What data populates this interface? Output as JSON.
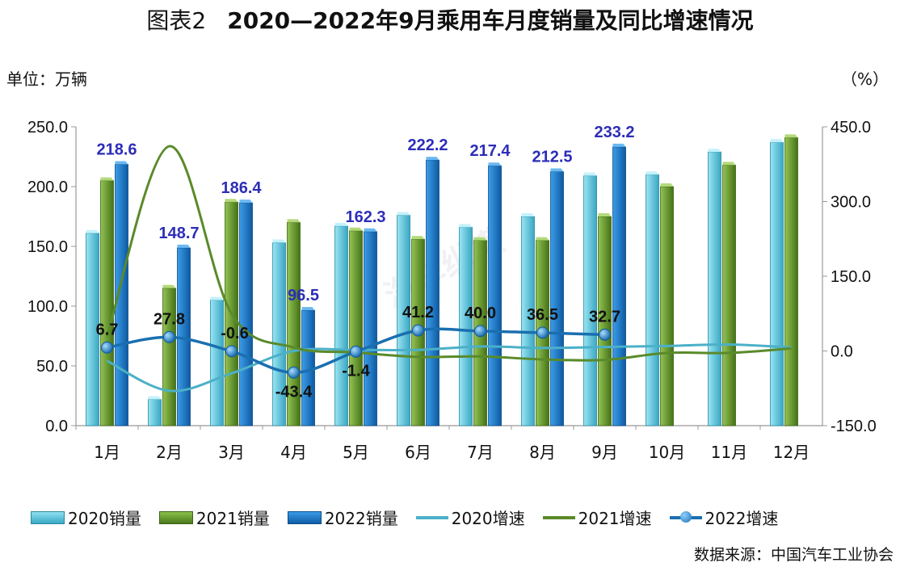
{
  "title": {
    "prefix": "图表2",
    "main": "2020—2022年9月乘用车月度销量及同比增速情况"
  },
  "unit_left": "单位：万辆",
  "unit_right": "（%）",
  "source": "数据来源：中国汽车工业协会",
  "watermark": "汽车纵横",
  "colors": {
    "s2020": "#5bc0d8",
    "s2021": "#5a8a2a",
    "s2022": "#1a74c4",
    "g2020": "#4bb0c8",
    "g2021": "#5a8a2a",
    "g2022": "#1a6fb0"
  },
  "chart_data": {
    "type": "bar",
    "categories": [
      "1月",
      "2月",
      "3月",
      "4月",
      "5月",
      "6月",
      "7月",
      "8月",
      "9月",
      "10月",
      "11月",
      "12月"
    ],
    "ylim": [
      0,
      250
    ],
    "y2lim": [
      -150,
      450
    ],
    "yticks": [
      "0.0",
      "50.0",
      "100.0",
      "150.0",
      "200.0",
      "250.0"
    ],
    "y2ticks": [
      "-150.0",
      "0.0",
      "150.0",
      "300.0",
      "450.0"
    ],
    "bars": [
      {
        "name": "2020销量",
        "values": [
          161,
          22,
          105,
          153,
          167,
          176,
          166,
          175,
          209,
          210,
          229,
          237
        ]
      },
      {
        "name": "2021销量",
        "values": [
          205,
          115,
          187,
          170,
          163,
          156,
          155,
          155,
          175,
          200,
          218,
          241
        ]
      },
      {
        "name": "2022销量",
        "values": [
          218.6,
          148.7,
          186.4,
          96.5,
          162.3,
          222.2,
          217.4,
          212.5,
          233.2,
          null,
          null,
          null
        ]
      }
    ],
    "lines": [
      {
        "name": "2020增速",
        "values": [
          -20,
          -80,
          -45,
          0,
          2,
          2,
          9,
          6,
          8,
          10,
          13,
          7
        ]
      },
      {
        "name": "2021增速",
        "values": [
          29,
          411,
          75,
          7,
          -3,
          -12,
          -11,
          -17,
          -18,
          -4,
          -4,
          5
        ]
      },
      {
        "name": "2022增速",
        "values": [
          6.7,
          27.8,
          -0.6,
          -43.4,
          -1.4,
          41.2,
          40.0,
          36.5,
          32.7,
          null,
          null,
          null
        ]
      }
    ],
    "bar_labels_2022": [
      "218.6",
      "148.7",
      "186.4",
      "96.5",
      "162.3",
      "222.2",
      "217.4",
      "212.5",
      "233.2"
    ],
    "growth_labels_2022": [
      "6.7",
      "27.8",
      "-0.6",
      "-43.4",
      "-1.4",
      "41.2",
      "40.0",
      "36.5",
      "32.7"
    ],
    "legend": [
      "2020销量",
      "2021销量",
      "2022销量",
      "2020增速",
      "2021增速",
      "2022增速"
    ]
  }
}
